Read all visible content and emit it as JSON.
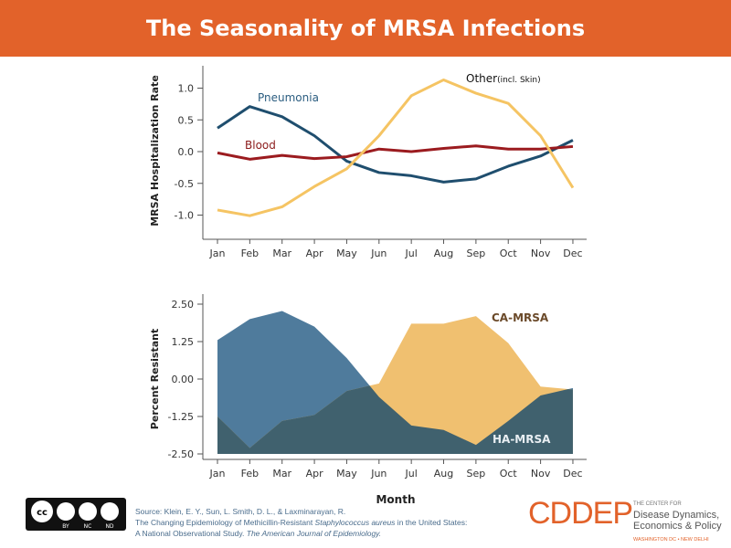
{
  "title": "The Seasonality of MRSA Infections",
  "chart_data": [
    {
      "type": "line",
      "ylabel": "MRSA Hospitalization Rate",
      "ylim": [
        -1.4,
        1.4
      ],
      "yticks": [
        "1.0",
        "0.5",
        "0.0",
        "-0.5",
        "-1.0"
      ],
      "categories": [
        "Jan",
        "Feb",
        "Mar",
        "Apr",
        "May",
        "Jun",
        "Jul",
        "Aug",
        "Sep",
        "Oct",
        "Nov",
        "Dec"
      ],
      "series": [
        {
          "name": "Pneumonia",
          "color": "#1f4e6e",
          "values": [
            0.37,
            0.71,
            0.55,
            0.25,
            -0.15,
            -0.33,
            -0.38,
            -0.48,
            -0.43,
            -0.23,
            -0.07,
            0.18
          ]
        },
        {
          "name": "Blood",
          "color": "#9b1b1f",
          "values": [
            -0.02,
            -0.12,
            -0.06,
            -0.11,
            -0.08,
            0.04,
            0.0,
            0.05,
            0.09,
            0.04,
            0.04,
            0.08
          ]
        },
        {
          "name": "Other",
          "name_suffix": "(incl. Skin)",
          "color": "#f5c463",
          "values": [
            -0.92,
            -1.01,
            -0.87,
            -0.55,
            -0.27,
            0.25,
            0.88,
            1.13,
            0.92,
            0.76,
            0.25,
            -0.57
          ]
        }
      ]
    },
    {
      "type": "area",
      "ylabel": "Percent Resistant",
      "xlabel": "Month",
      "ylim": [
        -2.5,
        3.0
      ],
      "yticks": [
        "2.50",
        "1.25",
        "0.00",
        "-1.25",
        "-2.50"
      ],
      "categories": [
        "Jan",
        "Feb",
        "Mar",
        "Apr",
        "May",
        "Jun",
        "Jul",
        "Aug",
        "Sep",
        "Oct",
        "Nov",
        "Dec"
      ],
      "series": [
        {
          "name": "HA-MRSA",
          "color": "#4f7b9c",
          "values": [
            1.3,
            2.0,
            2.27,
            1.75,
            0.7,
            -0.6,
            -1.55,
            -1.7,
            -2.2,
            -1.4,
            -0.55,
            -0.3
          ]
        },
        {
          "name": "CA-MRSA",
          "color": "#f0c070",
          "values": [
            -1.25,
            -2.3,
            -1.4,
            -1.2,
            -0.4,
            -0.15,
            1.85,
            1.85,
            2.1,
            1.2,
            -0.25,
            -0.35
          ]
        }
      ],
      "overlap_color": "#40616e"
    }
  ],
  "footer": {
    "source": "Source: Klein, E. Y., Sun, L.  Smith, D. L., & Laxminarayan, R.",
    "line2a": "The Changing Epidemiology of Methicillin-Resistant ",
    "line2b": "Staphylococcus aureus",
    "line2c": " in the United States:",
    "line3a": "A National Observational Study. ",
    "line3b": "The American Journal of Epidemiology.",
    "cc_labels": [
      "BY",
      "NC",
      "ND"
    ],
    "logo": "CDDEP",
    "logo_small": "THE CENTER FOR",
    "logo_line1": "Disease Dynamics,",
    "logo_line2": "Economics & Policy",
    "logo_loc": "WASHINGTON DC • NEW DELHI"
  }
}
